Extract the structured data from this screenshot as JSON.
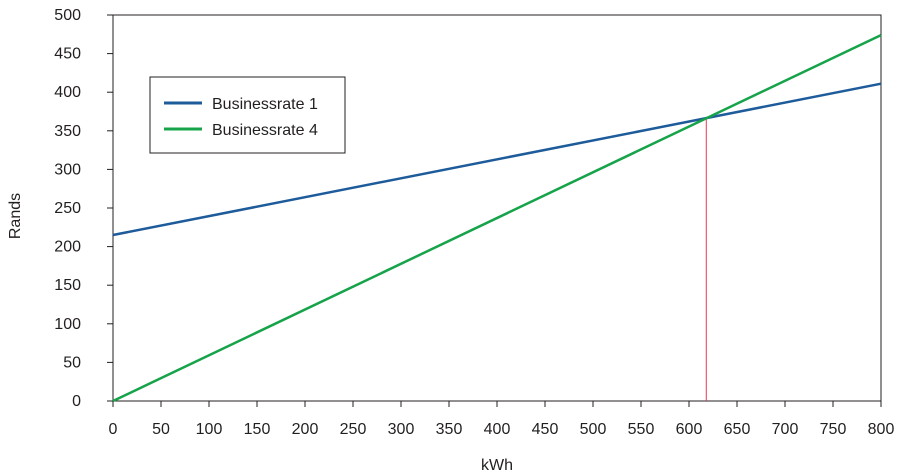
{
  "chart_data": {
    "type": "line",
    "title": "",
    "xlabel": "kWh",
    "ylabel": "Rands",
    "xlim": [
      0,
      800
    ],
    "ylim": [
      0,
      500
    ],
    "x_ticks": [
      "0",
      "50",
      "100",
      "150",
      "200",
      "250",
      "300",
      "350",
      "400",
      "450",
      "500",
      "550",
      "600",
      "650",
      "700",
      "750",
      "800"
    ],
    "y_ticks": [
      "0",
      "50",
      "100",
      "150",
      "200",
      "250",
      "300",
      "350",
      "400",
      "450",
      "500"
    ],
    "grid": false,
    "legend_position": "upper-left",
    "series": [
      {
        "name": "Businessrate 1",
        "color": "#1d5b9b",
        "x": [
          0,
          800
        ],
        "y": [
          215,
          411
        ]
      },
      {
        "name": "Businessrate 4",
        "color": "#16a34a",
        "x": [
          0,
          800
        ],
        "y": [
          0,
          474
        ]
      }
    ],
    "annotations": [
      {
        "type": "vertical-line",
        "x": 618,
        "y": 367,
        "color": "#e8384f"
      }
    ]
  }
}
